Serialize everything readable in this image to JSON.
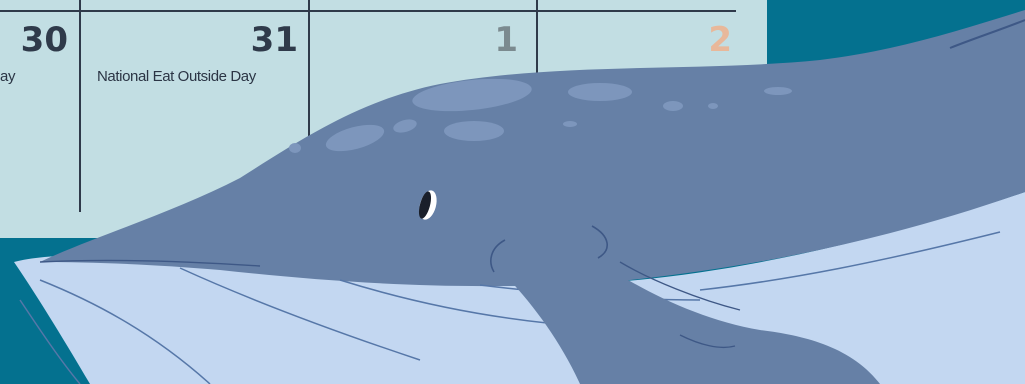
{
  "calendar": {
    "days": [
      {
        "number": "30",
        "event": "ay",
        "color": "#2f3a4a"
      },
      {
        "number": "31",
        "event": "National Eat Outside Day",
        "color": "#2f3a4a"
      },
      {
        "number": "1",
        "event": "",
        "color": "#7b8a8f"
      },
      {
        "number": "2",
        "event": "",
        "color": "#e8b89a"
      }
    ]
  },
  "colors": {
    "background": "#04718f",
    "calendar": "#c2dee3",
    "whale_body": "#6680a6",
    "whale_belly": "#c3d7f1",
    "grid": "#2f3a4a"
  },
  "illustration": {
    "subject": "blue-whale-icon"
  }
}
